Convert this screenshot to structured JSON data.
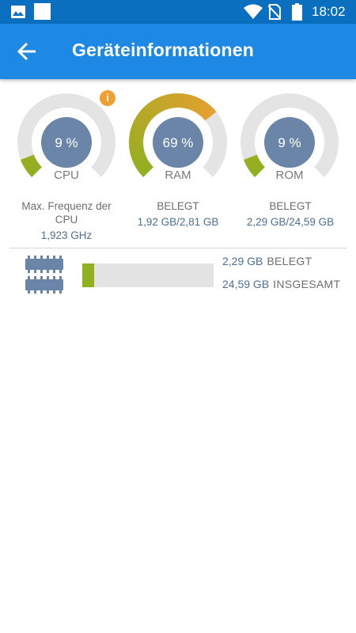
{
  "status_bar": {
    "time": "18:02",
    "icons": [
      "gallery-icon",
      "wifi-icon",
      "no-sim-icon",
      "battery-icon"
    ]
  },
  "app_bar": {
    "title": "Geräteinformationen",
    "back_icon": "arrow-left-icon"
  },
  "colors": {
    "status_bar": "#0b6fbf",
    "app_bar": "#1e88e5",
    "gauge_center": "#6b85a8",
    "gauge_track": "#e4e4e4",
    "gauge_low": "#8fb020",
    "gauge_high": "#e6a030",
    "info_badge": "#f0a030",
    "value_text": "#4c6f95"
  },
  "gauges": [
    {
      "id": "cpu",
      "value_text": "9 %",
      "percent": 9,
      "label": "CPU"
    },
    {
      "id": "ram",
      "value_text": "69 %",
      "percent": 69,
      "label": "RAM"
    },
    {
      "id": "rom",
      "value_text": "9 %",
      "percent": 9,
      "label": "ROM"
    }
  ],
  "cpu_info": {
    "caption": "Max. Frequenz der CPU",
    "value": "1,923 GHz"
  },
  "ram_info": {
    "caption": "BELEGT",
    "value": "1,92 GB/2,81 GB"
  },
  "rom_info": {
    "caption": "BELEGT",
    "value": "2,29 GB/24,59 GB"
  },
  "storage": {
    "used_value": "2,29 GB",
    "used_label": "BELEGT",
    "total_value": "24,59 GB",
    "total_label": "INSGESAMT",
    "used_fraction": 0.093
  }
}
